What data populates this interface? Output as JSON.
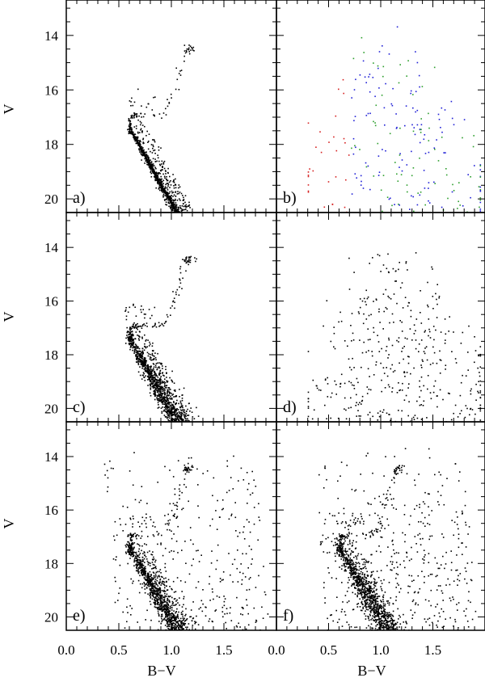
{
  "chart_data": {
    "type": "scatter",
    "layout": "3x2 panel grid",
    "xlabel": "B−V",
    "ylabel": "V",
    "xlim": [
      0.0,
      2.0
    ],
    "ylim": [
      20.5,
      12.7
    ],
    "y_inverted": true,
    "x_ticks": [
      "0.0",
      "0.5",
      "1.0",
      "1.5"
    ],
    "y_ticks": [
      "14",
      "16",
      "18",
      "20"
    ],
    "panels": [
      {
        "label": "a)",
        "content": "cluster model: fiducial sequence with binary sequence, subgiant and red giant branch, red clump",
        "fiducial": [
          [
            1.05,
            20.5
          ],
          [
            0.98,
            20.0
          ],
          [
            0.9,
            19.5
          ],
          [
            0.83,
            19.0
          ],
          [
            0.76,
            18.5
          ],
          [
            0.69,
            18.0
          ],
          [
            0.63,
            17.6
          ],
          [
            0.6,
            17.35
          ],
          [
            0.6,
            17.1
          ],
          [
            0.62,
            16.95
          ],
          [
            0.66,
            16.88
          ],
          [
            0.72,
            16.88
          ],
          [
            0.82,
            16.9
          ],
          [
            0.9,
            16.88
          ],
          [
            0.95,
            16.75
          ],
          [
            0.98,
            16.4
          ],
          [
            1.02,
            16.0
          ],
          [
            1.05,
            15.6
          ],
          [
            1.08,
            15.2
          ],
          [
            1.12,
            14.8
          ],
          [
            1.15,
            14.4
          ],
          [
            1.18,
            14.1
          ]
        ],
        "clump": {
          "center": [
            1.15,
            14.45
          ]
        },
        "colors": [
          "#000000"
        ]
      },
      {
        "label": "b)",
        "content": "field star model, colour-coded by component",
        "series_colors": [
          "#1f1fd6",
          "#2c9e2c",
          "#d62020"
        ]
      },
      {
        "label": "c)",
        "content": "cluster model with photometric errors",
        "fiducial_ref": "a"
      },
      {
        "label": "d)",
        "content": "field stars, single colour"
      },
      {
        "label": "e)",
        "content": "cluster + field combined model"
      },
      {
        "label": "f)",
        "content": "observed colour-magnitude diagram"
      }
    ]
  }
}
